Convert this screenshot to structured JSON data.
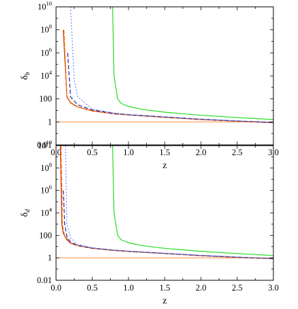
{
  "chart_data": [
    {
      "type": "line",
      "xlabel": "z",
      "ylabel": "δ",
      "ylabel_sub": "b",
      "yscale": "log",
      "xlim": [
        0.0,
        3.0
      ],
      "ylim": [
        0.01,
        10000000000.0
      ],
      "x_ticks": [
        "0.0",
        "0.5",
        "1.0",
        "1.5",
        "2.0",
        "2.5",
        "3.0"
      ],
      "y_ticks": [
        {
          "base": "0.01",
          "exp": ""
        },
        {
          "base": "1",
          "exp": ""
        },
        {
          "base": "100",
          "exp": ""
        },
        {
          "base": "10",
          "exp": "4"
        },
        {
          "base": "10",
          "exp": "6"
        },
        {
          "base": "10",
          "exp": "8"
        },
        {
          "base": "10",
          "exp": "10"
        }
      ],
      "series": [
        {
          "color": "#ff9955",
          "style": "solid",
          "x": [
            0.0,
            0.5,
            1.0,
            1.5,
            2.0,
            2.5,
            3.0
          ],
          "y": [
            1,
            1,
            1,
            1,
            1,
            1,
            1
          ]
        },
        {
          "color": "#cc2200",
          "style": "solid",
          "x": [
            0.1,
            0.15,
            0.2,
            0.3,
            0.5,
            0.8,
            1.0,
            1.5,
            2.0,
            2.5,
            3.0
          ],
          "y": [
            100000000,
            150,
            45,
            20,
            9,
            5,
            4,
            2.5,
            1.6,
            1.15,
            0.85
          ]
        },
        {
          "color": "#ff8800",
          "style": "dash",
          "x": [
            0.11,
            0.15,
            0.2,
            0.3,
            0.5,
            0.8,
            1.0,
            1.5,
            2.0,
            2.5,
            3.0
          ],
          "y": [
            100000000,
            180,
            50,
            21,
            9.5,
            5.1,
            4.1,
            2.6,
            1.65,
            1.2,
            0.9
          ]
        },
        {
          "color": "#2222aa",
          "style": "dash",
          "x": [
            0.16,
            0.2,
            0.3,
            0.5,
            0.8,
            1.0,
            1.5,
            2.0,
            2.5,
            3.0
          ],
          "y": [
            1000000,
            150,
            30,
            11,
            5.5,
            4.2,
            2.7,
            1.7,
            1.2,
            0.9
          ]
        },
        {
          "color": "#6688ff",
          "style": "dot",
          "x": [
            0.2,
            0.25,
            0.3,
            0.5,
            0.8,
            1.0,
            1.5,
            2.0,
            2.5,
            3.0
          ],
          "y": [
            10000000000,
            5000,
            150,
            13,
            6,
            4.5,
            2.8,
            1.8,
            1.25,
            0.95
          ]
        },
        {
          "color": "#22dd22",
          "style": "solid",
          "x": [
            0.78,
            0.8,
            0.85,
            0.9,
            1.0,
            1.2,
            1.5,
            2.0,
            2.5,
            3.0
          ],
          "y": [
            10000000000,
            10000,
            100,
            40,
            22,
            12,
            7,
            3.8,
            2.4,
            1.6
          ]
        }
      ]
    },
    {
      "type": "line",
      "xlabel": "z",
      "ylabel": "δ",
      "ylabel_sub": "d",
      "yscale": "log",
      "xlim": [
        0.0,
        3.0
      ],
      "ylim": [
        0.01,
        10000000000.0
      ],
      "x_ticks": [
        "0.0",
        "0.5",
        "1.0",
        "1.5",
        "2.0",
        "2.5",
        "3.0"
      ],
      "y_ticks": [
        {
          "base": "0.01",
          "exp": ""
        },
        {
          "base": "1",
          "exp": ""
        },
        {
          "base": "100",
          "exp": ""
        },
        {
          "base": "10",
          "exp": "4"
        },
        {
          "base": "10",
          "exp": "6"
        },
        {
          "base": "10",
          "exp": "8"
        },
        {
          "base": "10",
          "exp": "10"
        }
      ],
      "series": [
        {
          "color": "#ff9955",
          "style": "solid",
          "x": [
            0.0,
            0.5,
            1.0,
            1.5,
            2.0,
            2.5,
            3.0
          ],
          "y": [
            1,
            1,
            1,
            1,
            1,
            1,
            1
          ]
        },
        {
          "color": "#cc2200",
          "style": "solid",
          "x": [
            0.06,
            0.08,
            0.1,
            0.15,
            0.2,
            0.3,
            0.5,
            0.8,
            1.0,
            1.5,
            2.0,
            2.5,
            3.0
          ],
          "y": [
            10000000000,
            1000,
            150,
            40,
            20,
            12,
            7,
            4.5,
            3.7,
            2.4,
            1.55,
            1.1,
            0.82
          ]
        },
        {
          "color": "#ff8800",
          "style": "dash",
          "x": [
            0.07,
            0.09,
            0.12,
            0.2,
            0.3,
            0.5,
            0.8,
            1.0,
            1.5,
            2.0,
            2.5,
            3.0
          ],
          "y": [
            10000000000,
            800,
            90,
            22,
            12.5,
            7.2,
            4.6,
            3.8,
            2.45,
            1.6,
            1.12,
            0.84
          ]
        },
        {
          "color": "#2222aa",
          "style": "dash",
          "x": [
            0.1,
            0.12,
            0.15,
            0.2,
            0.3,
            0.5,
            0.8,
            1.0,
            1.5,
            2.0,
            2.5,
            3.0
          ],
          "y": [
            1000000,
            1000,
            80,
            25,
            13,
            7.5,
            4.8,
            3.9,
            2.5,
            1.6,
            1.15,
            0.85
          ]
        },
        {
          "color": "#6688ff",
          "style": "dot",
          "x": [
            0.13,
            0.15,
            0.2,
            0.3,
            0.5,
            0.8,
            1.0,
            1.5,
            2.0,
            2.5,
            3.0
          ],
          "y": [
            10000000000,
            1000,
            60,
            16,
            8,
            5,
            4,
            2.6,
            1.7,
            1.2,
            0.9
          ]
        },
        {
          "color": "#22dd22",
          "style": "solid",
          "x": [
            0.78,
            0.8,
            0.85,
            0.9,
            1.0,
            1.2,
            1.5,
            2.0,
            2.5,
            3.0
          ],
          "y": [
            10000000000,
            10000,
            100,
            40,
            22,
            12,
            7,
            3.8,
            2.4,
            1.6
          ]
        }
      ]
    }
  ]
}
